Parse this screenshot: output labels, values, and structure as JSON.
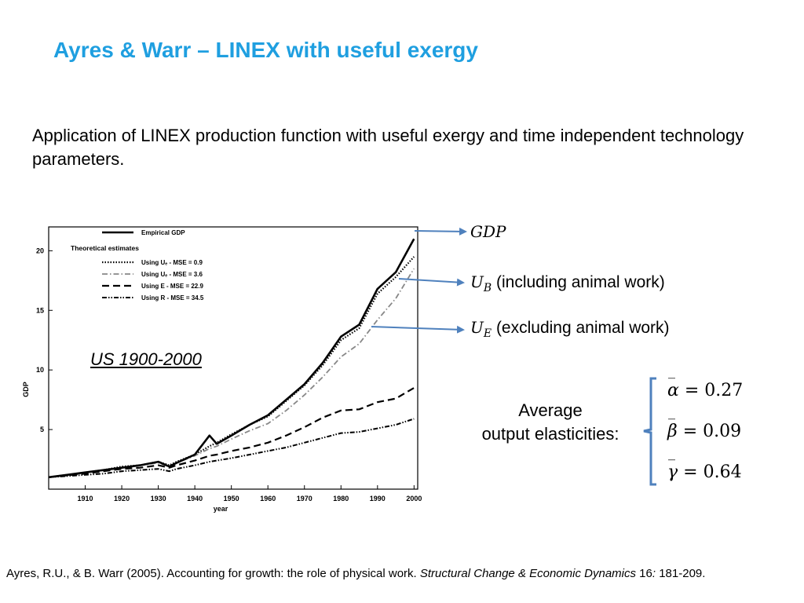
{
  "slide": {
    "title": "Ayres & Warr – LINEX with useful exergy",
    "intro": "Application of LINEX production function with useful exergy and time independent technology parameters.",
    "region_label": "US 1900-2000",
    "annotations": {
      "gdp": "GDP",
      "ub_symbol": "U",
      "ub_sub": "B",
      "ub_text": "(including animal work)",
      "ue_symbol": "U",
      "ue_sub": "E",
      "ue_text": "(excluding animal work)"
    },
    "elasticities": {
      "label_line1": "Average",
      "label_line2": "output elasticities:",
      "alpha_sym": "α",
      "alpha_val": "= 0.27",
      "beta_sym": "β",
      "beta_val": "= 0.09",
      "gamma_sym": "γ",
      "gamma_val": "= 0.64",
      "bar_char": "‾"
    },
    "citation": {
      "authors": "Ayres, R.U., & B. Warr (2005). Accounting for growth: the role of physical work. ",
      "journal": "Structural Change & Economic Dynamics",
      "volume": " 16",
      "colon": ":",
      "pages": " 181-209."
    }
  },
  "chart_data": {
    "type": "line",
    "xlabel": "year",
    "ylabel": "GDP",
    "xlim": [
      1900,
      2001
    ],
    "ylim": [
      0,
      22
    ],
    "xticks": [
      1910,
      1920,
      1930,
      1940,
      1950,
      1960,
      1970,
      1980,
      1990,
      2000
    ],
    "yticks": [
      5,
      10,
      15,
      20
    ],
    "legend": {
      "placement": "top-left",
      "heading": "Theoretical estimates"
    },
    "x": [
      1900,
      1905,
      1910,
      1915,
      1920,
      1925,
      1930,
      1933,
      1935,
      1940,
      1944,
      1946,
      1950,
      1955,
      1960,
      1965,
      1970,
      1975,
      1980,
      1985,
      1990,
      1995,
      2000
    ],
    "series": [
      {
        "name": "Empirical GDP",
        "style": "solid",
        "color": "#000000",
        "values": [
          1.0,
          1.2,
          1.4,
          1.6,
          1.8,
          2.0,
          2.3,
          1.9,
          2.2,
          2.9,
          4.5,
          3.8,
          4.5,
          5.4,
          6.2,
          7.5,
          8.8,
          10.6,
          12.8,
          13.8,
          16.8,
          18.2,
          21.0
        ]
      },
      {
        "name": "Using Uₑ - MSE = 0.9",
        "style": "dotted",
        "color": "#000000",
        "values": [
          1.0,
          1.2,
          1.4,
          1.6,
          1.9,
          2.0,
          2.3,
          2.0,
          2.3,
          2.9,
          3.6,
          3.9,
          4.6,
          5.4,
          6.1,
          7.4,
          8.7,
          10.4,
          12.5,
          13.5,
          16.4,
          17.8,
          19.5
        ]
      },
      {
        "name": "Using Uₑ - MSE = 3.6",
        "style": "dashdot",
        "color": "#888888",
        "values": [
          1.0,
          1.2,
          1.4,
          1.6,
          1.8,
          2.0,
          2.2,
          1.9,
          2.2,
          2.8,
          3.4,
          3.6,
          4.2,
          4.9,
          5.5,
          6.6,
          7.9,
          9.4,
          11.1,
          12.2,
          14.2,
          16.0,
          18.5
        ]
      },
      {
        "name": "Using E - MSE = 22.9",
        "style": "dashed",
        "color": "#000000",
        "values": [
          1.0,
          1.15,
          1.3,
          1.5,
          1.7,
          1.8,
          2.0,
          1.8,
          2.0,
          2.4,
          2.8,
          2.9,
          3.2,
          3.5,
          3.9,
          4.5,
          5.2,
          6.0,
          6.6,
          6.7,
          7.3,
          7.6,
          8.5
        ]
      },
      {
        "name": "Using R - MSE = 34.5",
        "style": "dashdotdot",
        "color": "#000000",
        "values": [
          1.0,
          1.1,
          1.2,
          1.3,
          1.5,
          1.6,
          1.7,
          1.5,
          1.7,
          2.0,
          2.3,
          2.4,
          2.6,
          2.9,
          3.2,
          3.5,
          3.9,
          4.3,
          4.7,
          4.8,
          5.1,
          5.4,
          5.9
        ]
      }
    ]
  }
}
